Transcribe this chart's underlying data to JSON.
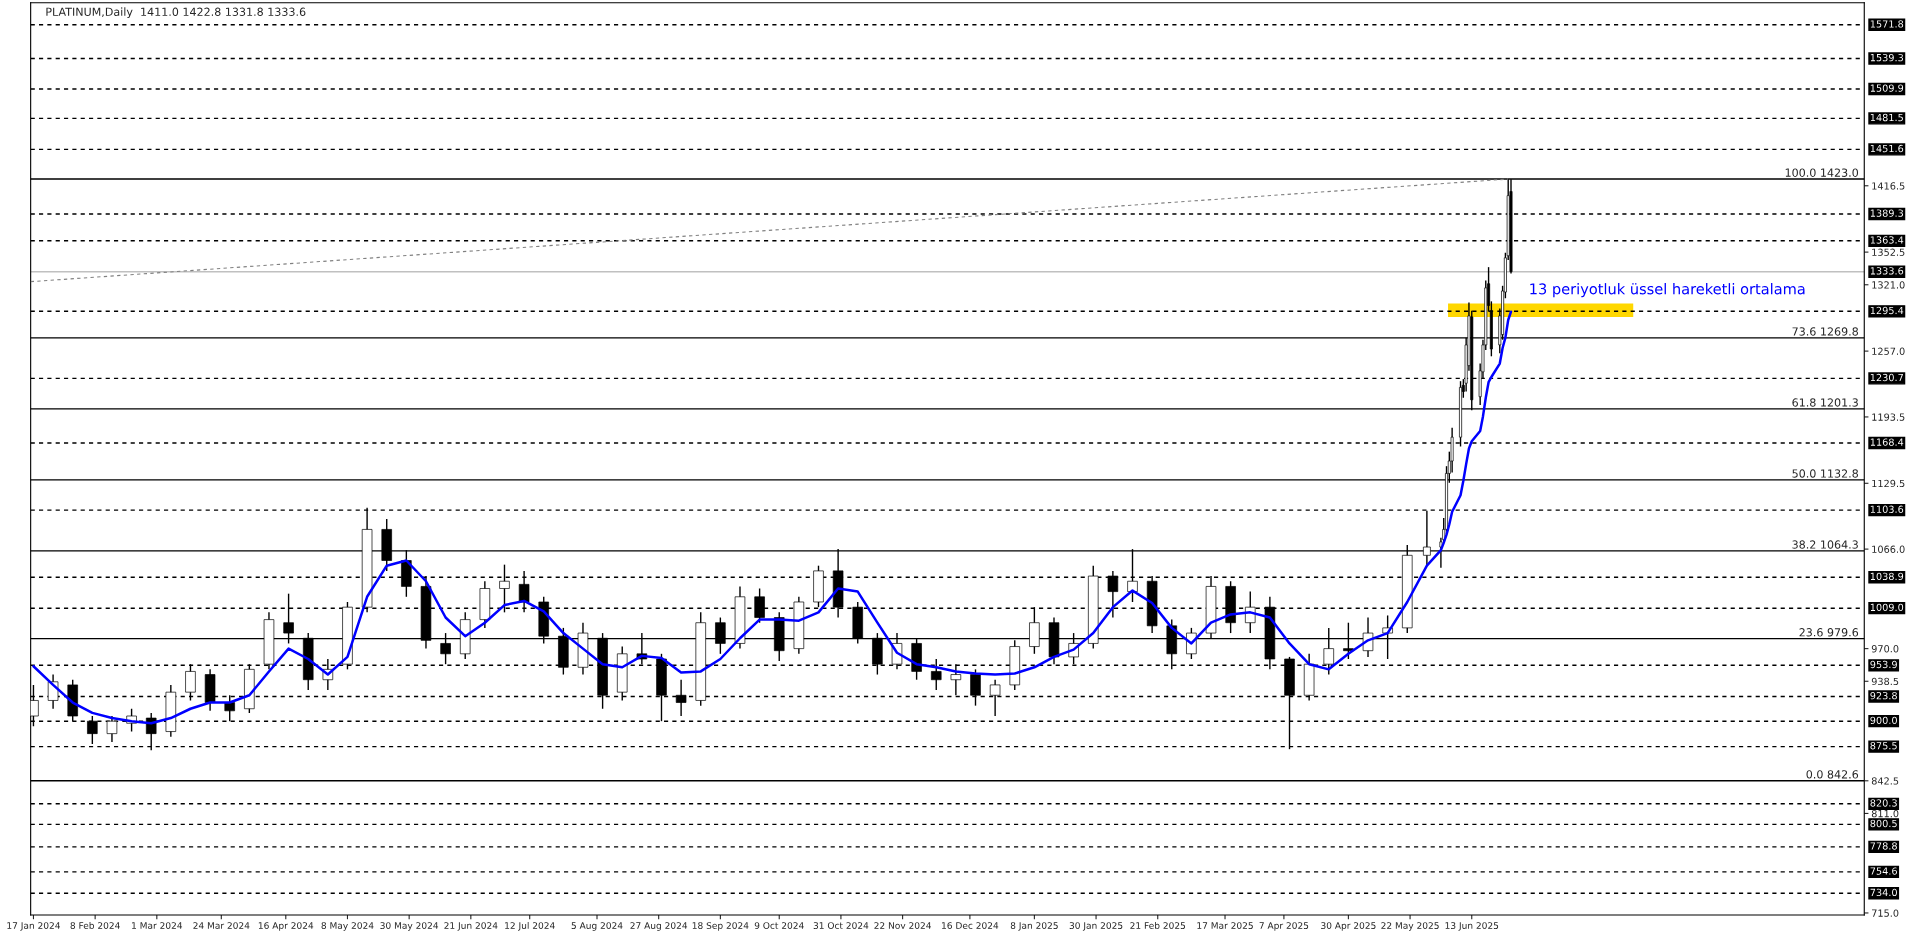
{
  "chart_data": {
    "type": "candlestick",
    "title": "PLATINUM,Daily  1411.0 1422.8 1331.8 1333.6",
    "x": [
      "2024-01-17",
      "2024-01-24",
      "2024-01-31",
      "2024-02-07",
      "2024-02-14",
      "2024-02-21",
      "2024-02-28",
      "2024-03-06",
      "2024-03-13",
      "2024-03-20",
      "2024-03-27",
      "2024-04-03",
      "2024-04-10",
      "2024-04-17",
      "2024-04-24",
      "2024-05-01",
      "2024-05-08",
      "2024-05-15",
      "2024-05-22",
      "2024-05-29",
      "2024-06-05",
      "2024-06-12",
      "2024-06-19",
      "2024-06-26",
      "2024-07-03",
      "2024-07-10",
      "2024-07-17",
      "2024-07-24",
      "2024-07-31",
      "2024-08-07",
      "2024-08-14",
      "2024-08-21",
      "2024-08-28",
      "2024-09-04",
      "2024-09-11",
      "2024-09-18",
      "2024-09-25",
      "2024-10-02",
      "2024-10-09",
      "2024-10-16",
      "2024-10-23",
      "2024-10-30",
      "2024-11-06",
      "2024-11-13",
      "2024-11-20",
      "2024-11-27",
      "2024-12-04",
      "2024-12-11",
      "2024-12-18",
      "2024-12-25",
      "2025-01-01",
      "2025-01-08",
      "2025-01-15",
      "2025-01-22",
      "2025-01-29",
      "2025-02-05",
      "2025-02-12",
      "2025-02-19",
      "2025-02-26",
      "2025-03-05",
      "2025-03-12",
      "2025-03-19",
      "2025-03-26",
      "2025-04-02",
      "2025-04-09",
      "2025-04-16",
      "2025-04-23",
      "2025-04-30",
      "2025-05-07",
      "2025-05-14",
      "2025-05-21",
      "2025-05-28",
      "2025-06-02",
      "2025-06-03",
      "2025-06-04",
      "2025-06-05",
      "2025-06-06",
      "2025-06-09",
      "2025-06-10",
      "2025-06-11",
      "2025-06-12",
      "2025-06-13",
      "2025-06-16",
      "2025-06-17",
      "2025-06-18",
      "2025-06-19",
      "2025-06-20",
      "2025-06-23",
      "2025-06-24",
      "2025-06-25",
      "2025-06-26",
      "2025-06-27"
    ],
    "ohlc": [
      [
        905,
        935,
        895,
        920
      ],
      [
        920,
        945,
        912,
        938
      ],
      [
        935,
        940,
        900,
        905
      ],
      [
        900,
        905,
        878,
        888
      ],
      [
        888,
        905,
        880,
        900
      ],
      [
        898,
        912,
        890,
        905
      ],
      [
        903,
        908,
        872,
        888
      ],
      [
        890,
        935,
        885,
        928
      ],
      [
        928,
        955,
        920,
        948
      ],
      [
        945,
        950,
        910,
        918
      ],
      [
        918,
        925,
        900,
        910
      ],
      [
        912,
        955,
        908,
        950
      ],
      [
        955,
        1005,
        950,
        998
      ],
      [
        995,
        1023,
        975,
        985
      ],
      [
        980,
        985,
        930,
        940
      ],
      [
        940,
        960,
        930,
        950
      ],
      [
        955,
        1015,
        950,
        1010
      ],
      [
        1010,
        1106,
        1005,
        1085
      ],
      [
        1085,
        1095,
        1045,
        1055
      ],
      [
        1055,
        1065,
        1020,
        1030
      ],
      [
        1030,
        1040,
        970,
        978
      ],
      [
        975,
        985,
        955,
        965
      ],
      [
        965,
        1005,
        960,
        998
      ],
      [
        998,
        1035,
        990,
        1028
      ],
      [
        1028,
        1051,
        1005,
        1035
      ],
      [
        1032,
        1045,
        1005,
        1015
      ],
      [
        1015,
        1020,
        975,
        982
      ],
      [
        982,
        990,
        945,
        952
      ],
      [
        952,
        995,
        945,
        985
      ],
      [
        980,
        985,
        912,
        925
      ],
      [
        928,
        972,
        920,
        965
      ],
      [
        965,
        985,
        955,
        960
      ],
      [
        960,
        965,
        900,
        925
      ],
      [
        925,
        940,
        905,
        918
      ],
      [
        920,
        1005,
        915,
        995
      ],
      [
        995,
        1000,
        965,
        975
      ],
      [
        975,
        1030,
        970,
        1020
      ],
      [
        1020,
        1028,
        995,
        1000
      ],
      [
        1000,
        1005,
        958,
        968
      ],
      [
        970,
        1020,
        965,
        1015
      ],
      [
        1015,
        1050,
        1010,
        1045
      ],
      [
        1045,
        1066,
        1000,
        1010
      ],
      [
        1010,
        1015,
        975,
        980
      ],
      [
        980,
        985,
        945,
        955
      ],
      [
        955,
        985,
        950,
        975
      ],
      [
        975,
        980,
        940,
        948
      ],
      [
        948,
        960,
        930,
        940
      ],
      [
        940,
        955,
        925,
        945
      ],
      [
        945,
        950,
        915,
        925
      ],
      [
        925,
        940,
        905,
        935
      ],
      [
        935,
        978,
        930,
        972
      ],
      [
        972,
        1010,
        965,
        995
      ],
      [
        995,
        1000,
        955,
        962
      ],
      [
        962,
        985,
        955,
        975
      ],
      [
        975,
        1050,
        970,
        1040
      ],
      [
        1040,
        1045,
        1000,
        1025
      ],
      [
        1025,
        1066,
        1015,
        1035
      ],
      [
        1035,
        1040,
        985,
        992
      ],
      [
        992,
        998,
        950,
        965
      ],
      [
        965,
        990,
        960,
        985
      ],
      [
        985,
        1040,
        980,
        1030
      ],
      [
        1030,
        1035,
        985,
        995
      ],
      [
        995,
        1025,
        985,
        1010
      ],
      [
        1010,
        1020,
        950,
        960
      ],
      [
        960,
        962,
        873,
        925
      ],
      [
        925,
        965,
        920,
        955
      ],
      [
        955,
        990,
        945,
        970
      ],
      [
        970,
        995,
        960,
        968
      ],
      [
        968,
        1000,
        962,
        985
      ],
      [
        985,
        1002,
        960,
        990
      ],
      [
        990,
        1070,
        985,
        1060
      ],
      [
        1060,
        1103,
        1050,
        1068
      ],
      [
        1068,
        1077,
        1048,
        1073
      ],
      [
        1075,
        1096,
        1072,
        1085
      ],
      [
        1085,
        1146,
        1083,
        1139
      ],
      [
        1139,
        1160,
        1130,
        1151
      ],
      [
        1151,
        1183,
        1140,
        1174
      ],
      [
        1174,
        1228,
        1165,
        1222
      ],
      [
        1224,
        1230,
        1212,
        1218
      ],
      [
        1226,
        1270,
        1218,
        1263
      ],
      [
        1243,
        1304,
        1238,
        1291
      ],
      [
        1290,
        1296,
        1200,
        1210
      ],
      [
        1213,
        1245,
        1205,
        1238
      ],
      [
        1237,
        1268,
        1230,
        1263
      ],
      [
        1263,
        1325,
        1258,
        1318
      ],
      [
        1322,
        1338,
        1295,
        1301
      ],
      [
        1296,
        1305,
        1252,
        1259
      ],
      [
        1263,
        1298,
        1255,
        1291
      ],
      [
        1273,
        1320,
        1268,
        1315
      ],
      [
        1314,
        1352,
        1308,
        1347
      ],
      [
        1349,
        1423,
        1345,
        1407
      ],
      [
        1411,
        1422.8,
        1331.8,
        1333.6
      ]
    ],
    "series": [
      {
        "type": "line",
        "color": "#0000ff",
        "x": [
          "2024-01-17",
          "2024-01-24",
          "2024-01-31",
          "2024-02-07",
          "2024-02-14",
          "2024-02-21",
          "2024-02-28",
          "2024-03-06",
          "2024-03-13",
          "2024-03-20",
          "2024-03-27",
          "2024-04-03",
          "2024-04-10",
          "2024-04-17",
          "2024-04-24",
          "2024-05-01",
          "2024-05-08",
          "2024-05-15",
          "2024-05-22",
          "2024-05-29",
          "2024-06-05",
          "2024-06-12",
          "2024-06-19",
          "2024-06-26",
          "2024-07-03",
          "2024-07-10",
          "2024-07-17",
          "2024-07-24",
          "2024-07-31",
          "2024-08-07",
          "2024-08-14",
          "2024-08-21",
          "2024-08-28",
          "2024-09-04",
          "2024-09-11",
          "2024-09-18",
          "2024-09-25",
          "2024-10-02",
          "2024-10-09",
          "2024-10-16",
          "2024-10-23",
          "2024-10-30",
          "2024-11-06",
          "2024-11-13",
          "2024-11-20",
          "2024-11-27",
          "2024-12-04",
          "2024-12-11",
          "2024-12-18",
          "2024-12-25",
          "2025-01-01",
          "2025-01-08",
          "2025-01-15",
          "2025-01-22",
          "2025-01-29",
          "2025-02-05",
          "2025-02-12",
          "2025-02-19",
          "2025-02-26",
          "2025-03-05",
          "2025-03-12",
          "2025-03-19",
          "2025-03-26",
          "2025-04-02",
          "2025-04-09",
          "2025-04-16",
          "2025-04-23",
          "2025-04-30",
          "2025-05-07",
          "2025-05-14",
          "2025-05-21",
          "2025-05-28",
          "2025-06-02",
          "2025-06-03",
          "2025-06-04",
          "2025-06-05",
          "2025-06-06",
          "2025-06-09",
          "2025-06-10",
          "2025-06-11",
          "2025-06-12",
          "2025-06-13",
          "2025-06-16",
          "2025-06-17",
          "2025-06-18",
          "2025-06-19",
          "2025-06-20",
          "2025-06-23",
          "2025-06-24",
          "2025-06-25",
          "2025-06-26",
          "2025-06-27"
        ],
        "values": [
          953,
          935,
          918,
          908,
          903,
          900,
          898,
          903,
          912,
          918,
          918,
          925,
          948,
          970,
          960,
          945,
          962,
          1020,
          1050,
          1055,
          1035,
          1000,
          982,
          995,
          1012,
          1016,
          1006,
          985,
          970,
          955,
          952,
          963,
          961,
          947,
          948,
          960,
          980,
          998,
          998,
          997,
          1005,
          1028,
          1025,
          995,
          966,
          955,
          952,
          948,
          946,
          945,
          946,
          952,
          962,
          969,
          985,
          1010,
          1026,
          1014,
          990,
          975,
          995,
          1003,
          1005,
          1000,
          975,
          955,
          950,
          965,
          978,
          985,
          1015,
          1050,
          1065,
          1072,
          1080,
          1090,
          1102,
          1118,
          1132,
          1148,
          1163,
          1170,
          1180,
          1194,
          1212,
          1227,
          1232,
          1245,
          1260,
          1270,
          1287,
          1295
        ]
      },
      {
        "type": "line",
        "color": "#808080",
        "line_style": "dashed",
        "x": [
          "2024-01-16",
          "2025-06-26"
        ],
        "values": [
          1324,
          1423
        ]
      }
    ],
    "xlim": [
      "2024-01-16",
      "2025-10-31"
    ],
    "xticks": [
      {
        "value": "2024-01-17",
        "label": "17 Jan 2024"
      },
      {
        "value": "2024-02-08",
        "label": "8 Feb 2024"
      },
      {
        "value": "2024-03-01",
        "label": "1 Mar 2024"
      },
      {
        "value": "2024-03-24",
        "label": "24 Mar 2024"
      },
      {
        "value": "2024-04-16",
        "label": "16 Apr 2024"
      },
      {
        "value": "2024-05-08",
        "label": "8 May 2024"
      },
      {
        "value": "2024-05-30",
        "label": "30 May 2024"
      },
      {
        "value": "2024-06-21",
        "label": "21 Jun 2024"
      },
      {
        "value": "2024-07-12",
        "label": "12 Jul 2024"
      },
      {
        "value": "2024-08-05",
        "label": "5 Aug 2024"
      },
      {
        "value": "2024-08-27",
        "label": "27 Aug 2024"
      },
      {
        "value": "2024-09-18",
        "label": "18 Sep 2024"
      },
      {
        "value": "2024-10-09",
        "label": "9 Oct 2024"
      },
      {
        "value": "2024-10-31",
        "label": "31 Oct 2024"
      },
      {
        "value": "2024-11-22",
        "label": "22 Nov 2024"
      },
      {
        "value": "2024-12-16",
        "label": "16 Dec 2024"
      },
      {
        "value": "2025-01-08",
        "label": "8 Jan 2025"
      },
      {
        "value": "2025-01-30",
        "label": "30 Jan 2025"
      },
      {
        "value": "2025-02-21",
        "label": "21 Feb 2025"
      },
      {
        "value": "2025-03-17",
        "label": "17 Mar 2025"
      },
      {
        "value": "2025-04-07",
        "label": "7 Apr 2025"
      },
      {
        "value": "2025-04-30",
        "label": "30 Apr 2025"
      },
      {
        "value": "2025-05-22",
        "label": "22 May 2025"
      },
      {
        "value": "2025-06-13",
        "label": "13 Jun 2025"
      }
    ],
    "ylim": [
      713,
      1593
    ],
    "yticks": [
      1416.5,
      1352.5,
      {
        "value": 1321,
        "label": "1321.0"
      },
      {
        "value": 1257,
        "label": "1257.0"
      },
      1193.5,
      1129.5,
      {
        "value": 1066,
        "label": "1066.0"
      },
      {
        "value": 970,
        "label": "970.0"
      },
      938.5,
      842.5,
      {
        "value": 811,
        "label": "811.0"
      },
      {
        "value": 715,
        "label": "715.0"
      }
    ],
    "ref_lines": [
      {
        "axis": "y",
        "value": 1571.8,
        "label": "1571.8",
        "color": "#000000",
        "line_style": "dashed"
      },
      {
        "axis": "y",
        "value": 1539.3,
        "label": "1539.3",
        "color": "#000000",
        "line_style": "dashed"
      },
      {
        "axis": "y",
        "value": 1509.9,
        "label": "1509.9",
        "color": "#000000",
        "line_style": "dashed"
      },
      {
        "axis": "y",
        "value": 1481.5,
        "label": "1481.5",
        "color": "#000000",
        "line_style": "dashed"
      },
      {
        "axis": "y",
        "value": 1451.6,
        "label": "1451.6",
        "color": "#000000",
        "line_style": "dashed"
      },
      {
        "axis": "y",
        "value": 1423.0,
        "label": "100.0 1423.0",
        "color": "#000000",
        "line_style": "solid"
      },
      {
        "axis": "y",
        "value": 1389.3,
        "label": "1389.3",
        "color": "#000000",
        "line_style": "dashed"
      },
      {
        "axis": "y",
        "value": 1363.4,
        "label": "1363.4",
        "color": "#000000",
        "line_style": "dashed"
      },
      {
        "axis": "y",
        "value": 1333.6,
        "label": "1333.6",
        "color": "#c0c0c0",
        "line_style": "solid"
      },
      {
        "axis": "y",
        "value": 1295.4,
        "label": "1295.4",
        "color": "#000000",
        "line_style": "dashed"
      },
      {
        "axis": "y",
        "value": 1269.8,
        "label": "73.6 1269.8",
        "color": "#000000",
        "line_style": "solid"
      },
      {
        "axis": "y",
        "value": 1230.7,
        "label": "1230.7",
        "color": "#000000",
        "line_style": "dashed"
      },
      {
        "axis": "y",
        "value": 1201.3,
        "label": "61.8 1201.3",
        "color": "#000000",
        "line_style": "solid"
      },
      {
        "axis": "y",
        "value": 1168.4,
        "label": "1168.4",
        "color": "#000000",
        "line_style": "dashed"
      },
      {
        "axis": "y",
        "value": 1132.8,
        "label": "50.0 1132.8",
        "color": "#000000",
        "line_style": "solid"
      },
      {
        "axis": "y",
        "value": 1103.6,
        "label": "1103.6",
        "color": "#000000",
        "line_style": "dashed"
      },
      {
        "axis": "y",
        "value": 1064.3,
        "label": "38.2 1064.3",
        "color": "#000000",
        "line_style": "solid"
      },
      {
        "axis": "y",
        "value": 1038.9,
        "label": "1038.9",
        "color": "#000000",
        "line_style": "dashed"
      },
      {
        "axis": "y",
        "value": 1009.0,
        "label": "1009.0",
        "color": "#000000",
        "line_style": "dashed"
      },
      {
        "axis": "y",
        "value": 979.6,
        "label": "23.6 979.6",
        "color": "#000000",
        "line_style": "solid"
      },
      {
        "axis": "y",
        "value": 953.9,
        "label": "953.9",
        "color": "#000000",
        "line_style": "dashed"
      },
      {
        "axis": "y",
        "value": 923.8,
        "label": "923.8",
        "color": "#000000",
        "line_style": "dashed"
      },
      {
        "axis": "y",
        "value": 900.0,
        "label": "900.0",
        "color": "#000000",
        "line_style": "dashed"
      },
      {
        "axis": "y",
        "value": 875.5,
        "label": "875.5",
        "color": "#000000",
        "line_style": "dashed"
      },
      {
        "axis": "y",
        "value": 842.6,
        "label": "0.0 842.6",
        "color": "#000000",
        "line_style": "solid"
      },
      {
        "axis": "y",
        "value": 820.3,
        "label": "820.3",
        "color": "#000000",
        "line_style": "dashed"
      },
      {
        "axis": "y",
        "value": 800.5,
        "label": "800.5",
        "color": "#000000",
        "line_style": "dashed"
      },
      {
        "axis": "y",
        "value": 778.8,
        "label": "778.8",
        "color": "#000000",
        "line_style": "dashed"
      },
      {
        "axis": "y",
        "value": 754.6,
        "label": "754.6",
        "color": "#000000",
        "line_style": "dashed"
      },
      {
        "axis": "y",
        "value": 734.0,
        "label": "734.0",
        "color": "#000000",
        "line_style": "dashed"
      }
    ],
    "bands": [
      {
        "axis": "y",
        "from": 1290,
        "to": 1303,
        "color": "#ffd700"
      }
    ],
    "annotations": [
      "13 periyotluk üssel hareketli ortalama"
    ],
    "grid": false,
    "legend": false
  }
}
